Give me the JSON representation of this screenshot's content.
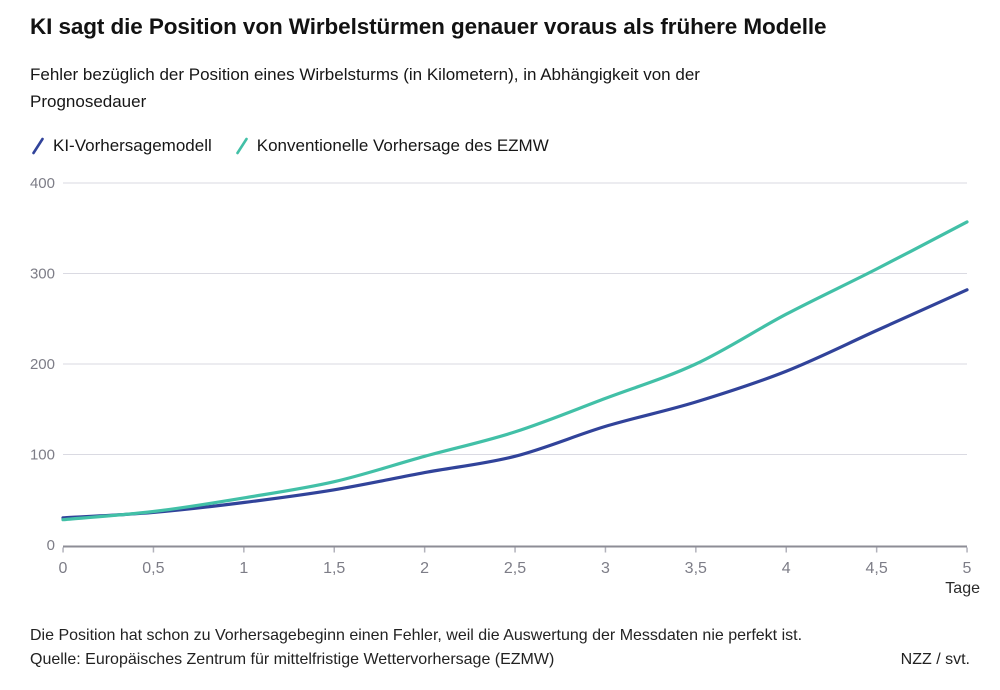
{
  "header": {
    "title": "KI sagt die Position von Wirbelstürmen genauer voraus als frühere Modelle",
    "subtitle_lines": [
      "Fehler bezüglich der Position eines Wirbelsturms (in Kilometern), in Abhängigkeit von der",
      "Prognosedauer"
    ]
  },
  "legend": [
    {
      "label": "KI-Vorhersagemodell",
      "color": "#31439a"
    },
    {
      "label": "Konventionelle Vorhersage des EZMW",
      "color": "#42c0a7"
    }
  ],
  "chart_data": {
    "type": "line",
    "x": [
      0,
      0.5,
      1,
      1.5,
      2,
      2.5,
      3,
      3.5,
      4,
      4.5,
      5
    ],
    "x_tick_labels": [
      "0",
      "0,5",
      "1",
      "1,5",
      "2",
      "2,5",
      "3",
      "3,5",
      "4",
      "4,5",
      "5"
    ],
    "y_ticks": [
      0,
      100,
      200,
      300,
      400
    ],
    "xlim": [
      0,
      5
    ],
    "ylim": [
      0,
      400
    ],
    "xlabel": "Tage",
    "ylabel": "",
    "grid": "horizontal",
    "legend_position": "top",
    "series": [
      {
        "name": "KI-Vorhersagemodell",
        "color": "#31439a",
        "values": [
          30,
          36,
          47,
          61,
          80,
          98,
          131,
          158,
          192,
          237,
          282
        ]
      },
      {
        "name": "Konventionelle Vorhersage des EZMW",
        "color": "#42c0a7",
        "values": [
          28,
          37,
          52,
          70,
          98,
          125,
          162,
          200,
          255,
          305,
          357
        ]
      }
    ]
  },
  "colors": {
    "gridline": "#dadae2",
    "axis_line": "#8d8d96",
    "tick_mark": "#b2b2bb",
    "tick_label": "#7d7d87",
    "axis_unit_label": "#2b2b2b"
  },
  "footer": {
    "note": "Die Position hat schon zu Vorhersagebeginn einen Fehler, weil die Auswertung der Messdaten nie perfekt ist.",
    "source": "Quelle: Europäisches Zentrum für mittelfristige Wettervorhersage (EZMW)",
    "credit": "NZZ / svt."
  }
}
